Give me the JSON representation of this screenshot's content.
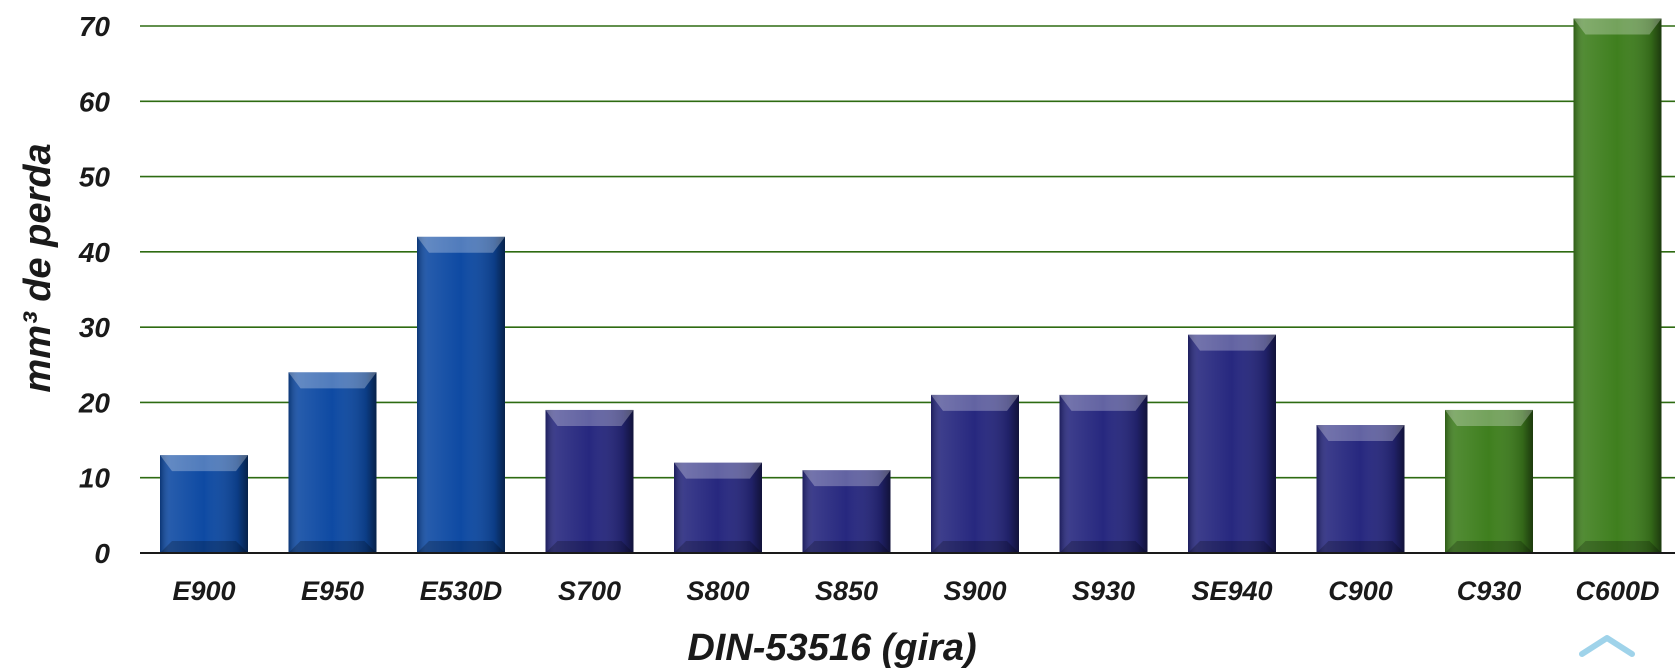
{
  "chart_data": {
    "type": "bar",
    "categories": [
      "E900",
      "E950",
      "E530D",
      "S700",
      "S800",
      "S850",
      "S900",
      "S930",
      "SE940",
      "C900",
      "C930",
      "C600D"
    ],
    "values": [
      13,
      24,
      42,
      19,
      12,
      11,
      21,
      21,
      29,
      17,
      19,
      71
    ],
    "bar_colors": [
      "#0e4aa3",
      "#0e4aa3",
      "#0e4aa3",
      "#27287f",
      "#27287f",
      "#27287f",
      "#27287f",
      "#27287f",
      "#27287f",
      "#27287f",
      "#3f7f1e",
      "#3f7f1e"
    ],
    "xlabel": "DIN-53516 (gira)",
    "ylabel": "mm³ de perda",
    "ylim": [
      0,
      70
    ],
    "yticks": [
      "0",
      "10",
      "20",
      "30",
      "40",
      "50",
      "60",
      "70"
    ],
    "grid": true,
    "gridline_color": "#2e6b12"
  },
  "scroll_top_icon": "chevron-up-icon"
}
